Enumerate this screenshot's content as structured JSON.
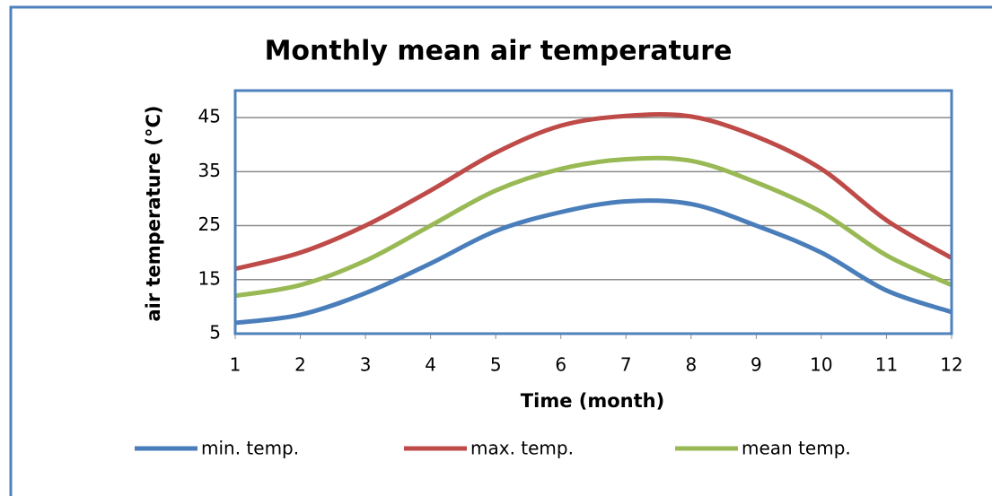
{
  "chart_data": {
    "type": "line",
    "title": "Monthly mean air temperature",
    "x_label": "Time (month)",
    "y_label": "air temperature (°C)",
    "x": [
      1,
      2,
      3,
      4,
      5,
      6,
      7,
      8,
      9,
      10,
      11,
      12
    ],
    "xlim": [
      1,
      12
    ],
    "xticks": [
      1,
      2,
      3,
      4,
      5,
      6,
      7,
      8,
      9,
      10,
      11,
      12
    ],
    "ylim": [
      5,
      50
    ],
    "yticks": [
      5,
      15,
      25,
      35,
      45
    ],
    "grid": true,
    "legend": "bottom",
    "series": [
      {
        "name": "min. temp.",
        "color": "#4a7ebb",
        "values": [
          7,
          8.5,
          12.5,
          18,
          24,
          27.5,
          29.5,
          29,
          25,
          20,
          13,
          9
        ]
      },
      {
        "name": "max. temp.",
        "color": "#be4b48",
        "values": [
          17,
          20,
          25,
          31.5,
          38.5,
          43.5,
          45.3,
          45.2,
          41.5,
          35.5,
          26,
          19
        ]
      },
      {
        "name": "mean temp.",
        "color": "#98b954",
        "values": [
          12,
          14,
          18.5,
          25,
          31.5,
          35.5,
          37.3,
          37,
          33,
          27.5,
          19.5,
          14
        ]
      }
    ]
  }
}
